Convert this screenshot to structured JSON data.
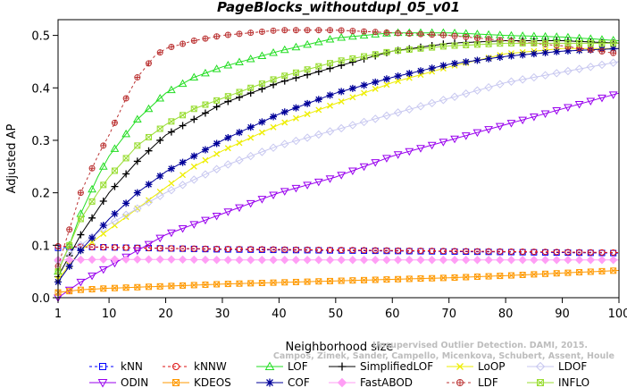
{
  "chart_data": {
    "type": "line",
    "title": "PageBlocks_withoutdupl_05_v01",
    "xlabel": "Neighborhood size",
    "ylabel": "Adjusted AP",
    "xlim": [
      1,
      100
    ],
    "ylim": [
      0,
      0.53
    ],
    "xticks": [
      1,
      10,
      20,
      30,
      40,
      50,
      60,
      70,
      80,
      90,
      100
    ],
    "yticks": [
      0.0,
      0.1,
      0.2,
      0.3,
      0.4,
      0.5
    ],
    "xtick_labels": [
      "1",
      "10",
      "20",
      "30",
      "40",
      "50",
      "60",
      "70",
      "80",
      "90",
      "100"
    ],
    "ytick_labels": [
      "0.0",
      "0.1",
      "0.2",
      "0.3",
      "0.4",
      "0.5"
    ],
    "grid": false,
    "legend_position": "bottom",
    "credit": {
      "line1": "Campos, Zimek, Sander, Campello, Micenkova, Schubert, Assent, Houle",
      "line2": "Unsupervised Outlier Detection. DAMI, 2015."
    },
    "series": [
      {
        "name": "kNN",
        "color": "#0000ff",
        "marker": "square",
        "dash": "3,3",
        "points": [
          [
            1,
            0.095
          ],
          [
            5,
            0.097
          ],
          [
            10,
            0.096
          ],
          [
            20,
            0.094
          ],
          [
            30,
            0.092
          ],
          [
            40,
            0.091
          ],
          [
            50,
            0.09
          ],
          [
            60,
            0.089
          ],
          [
            70,
            0.088
          ],
          [
            80,
            0.087
          ],
          [
            90,
            0.086
          ],
          [
            100,
            0.085
          ]
        ]
      },
      {
        "name": "kNNW",
        "color": "#dd1111",
        "marker": "circle",
        "dash": "3,3",
        "points": [
          [
            1,
            0.098
          ],
          [
            5,
            0.097
          ],
          [
            10,
            0.096
          ],
          [
            20,
            0.094
          ],
          [
            30,
            0.093
          ],
          [
            40,
            0.092
          ],
          [
            50,
            0.091
          ],
          [
            60,
            0.09
          ],
          [
            70,
            0.089
          ],
          [
            80,
            0.088
          ],
          [
            90,
            0.087
          ],
          [
            100,
            0.086
          ]
        ]
      },
      {
        "name": "LOF",
        "color": "#22dd22",
        "marker": "triangle-up",
        "dash": "",
        "points": [
          [
            1,
            0.05
          ],
          [
            3,
            0.1
          ],
          [
            5,
            0.16
          ],
          [
            8,
            0.23
          ],
          [
            10,
            0.27
          ],
          [
            15,
            0.34
          ],
          [
            20,
            0.39
          ],
          [
            25,
            0.42
          ],
          [
            30,
            0.44
          ],
          [
            40,
            0.47
          ],
          [
            50,
            0.495
          ],
          [
            60,
            0.505
          ],
          [
            70,
            0.505
          ],
          [
            80,
            0.5
          ],
          [
            90,
            0.497
          ],
          [
            100,
            0.49
          ]
        ]
      },
      {
        "name": "SimplifiedLOF",
        "color": "#000000",
        "marker": "plus",
        "dash": "",
        "points": [
          [
            1,
            0.04
          ],
          [
            3,
            0.08
          ],
          [
            5,
            0.12
          ],
          [
            10,
            0.2
          ],
          [
            15,
            0.26
          ],
          [
            20,
            0.31
          ],
          [
            25,
            0.34
          ],
          [
            30,
            0.37
          ],
          [
            40,
            0.41
          ],
          [
            50,
            0.44
          ],
          [
            60,
            0.47
          ],
          [
            70,
            0.485
          ],
          [
            80,
            0.49
          ],
          [
            90,
            0.49
          ],
          [
            100,
            0.485
          ]
        ]
      },
      {
        "name": "LoOP",
        "color": "#eeee00",
        "marker": "x",
        "dash": "",
        "points": [
          [
            1,
            0.035
          ],
          [
            5,
            0.09
          ],
          [
            10,
            0.13
          ],
          [
            15,
            0.17
          ],
          [
            20,
            0.21
          ],
          [
            25,
            0.25
          ],
          [
            30,
            0.28
          ],
          [
            40,
            0.33
          ],
          [
            50,
            0.37
          ],
          [
            60,
            0.41
          ],
          [
            70,
            0.44
          ],
          [
            80,
            0.465
          ],
          [
            90,
            0.475
          ],
          [
            100,
            0.475
          ]
        ]
      },
      {
        "name": "LDOF",
        "color": "#c8c8f0",
        "marker": "diamond",
        "dash": "",
        "points": [
          [
            1,
            0.07
          ],
          [
            5,
            0.1
          ],
          [
            10,
            0.14
          ],
          [
            15,
            0.17
          ],
          [
            20,
            0.2
          ],
          [
            30,
            0.25
          ],
          [
            40,
            0.29
          ],
          [
            50,
            0.32
          ],
          [
            60,
            0.35
          ],
          [
            70,
            0.38
          ],
          [
            80,
            0.41
          ],
          [
            90,
            0.43
          ],
          [
            100,
            0.45
          ]
        ]
      },
      {
        "name": "ODIN",
        "color": "#9900ee",
        "marker": "triangle-down",
        "dash": "",
        "points": [
          [
            1,
            0.0
          ],
          [
            5,
            0.03
          ],
          [
            10,
            0.06
          ],
          [
            15,
            0.09
          ],
          [
            20,
            0.12
          ],
          [
            30,
            0.16
          ],
          [
            40,
            0.2
          ],
          [
            50,
            0.23
          ],
          [
            60,
            0.27
          ],
          [
            70,
            0.3
          ],
          [
            80,
            0.33
          ],
          [
            90,
            0.36
          ],
          [
            100,
            0.39
          ]
        ]
      },
      {
        "name": "KDEOS",
        "color": "#ff9900",
        "marker": "square-x",
        "dash": "",
        "points": [
          [
            1,
            0.01
          ],
          [
            5,
            0.015
          ],
          [
            10,
            0.018
          ],
          [
            20,
            0.022
          ],
          [
            30,
            0.026
          ],
          [
            40,
            0.029
          ],
          [
            50,
            0.032
          ],
          [
            60,
            0.035
          ],
          [
            70,
            0.038
          ],
          [
            80,
            0.042
          ],
          [
            90,
            0.047
          ],
          [
            100,
            0.052
          ]
        ]
      },
      {
        "name": "COF",
        "color": "#000099",
        "marker": "asterisk",
        "dash": "",
        "points": [
          [
            1,
            0.03
          ],
          [
            3,
            0.06
          ],
          [
            5,
            0.09
          ],
          [
            10,
            0.15
          ],
          [
            15,
            0.2
          ],
          [
            20,
            0.24
          ],
          [
            25,
            0.27
          ],
          [
            30,
            0.3
          ],
          [
            40,
            0.35
          ],
          [
            50,
            0.39
          ],
          [
            60,
            0.42
          ],
          [
            70,
            0.445
          ],
          [
            80,
            0.46
          ],
          [
            90,
            0.47
          ],
          [
            100,
            0.475
          ]
        ]
      },
      {
        "name": "FastABOD",
        "color": "#ff9ef5",
        "marker": "diamond-filled",
        "dash": "",
        "points": [
          [
            1,
            0.072
          ],
          [
            10,
            0.073
          ],
          [
            20,
            0.073
          ],
          [
            30,
            0.072
          ],
          [
            40,
            0.072
          ],
          [
            50,
            0.072
          ],
          [
            60,
            0.072
          ],
          [
            70,
            0.072
          ],
          [
            80,
            0.072
          ],
          [
            90,
            0.072
          ],
          [
            100,
            0.072
          ]
        ]
      },
      {
        "name": "LDF",
        "color": "#bb3333",
        "marker": "circle-plus",
        "dash": "3,3",
        "points": [
          [
            1,
            0.06
          ],
          [
            3,
            0.13
          ],
          [
            5,
            0.2
          ],
          [
            8,
            0.27
          ],
          [
            10,
            0.31
          ],
          [
            13,
            0.38
          ],
          [
            15,
            0.42
          ],
          [
            18,
            0.46
          ],
          [
            20,
            0.475
          ],
          [
            25,
            0.49
          ],
          [
            30,
            0.5
          ],
          [
            40,
            0.51
          ],
          [
            50,
            0.51
          ],
          [
            60,
            0.505
          ],
          [
            70,
            0.5
          ],
          [
            80,
            0.49
          ],
          [
            90,
            0.48
          ],
          [
            100,
            0.465
          ]
        ]
      },
      {
        "name": "INFLO",
        "color": "#99dd33",
        "marker": "square-x",
        "dash": "",
        "points": [
          [
            1,
            0.05
          ],
          [
            3,
            0.1
          ],
          [
            5,
            0.15
          ],
          [
            8,
            0.2
          ],
          [
            10,
            0.23
          ],
          [
            15,
            0.29
          ],
          [
            20,
            0.33
          ],
          [
            25,
            0.36
          ],
          [
            30,
            0.38
          ],
          [
            40,
            0.42
          ],
          [
            50,
            0.45
          ],
          [
            60,
            0.47
          ],
          [
            70,
            0.48
          ],
          [
            80,
            0.485
          ],
          [
            90,
            0.485
          ],
          [
            100,
            0.485
          ]
        ]
      }
    ]
  }
}
